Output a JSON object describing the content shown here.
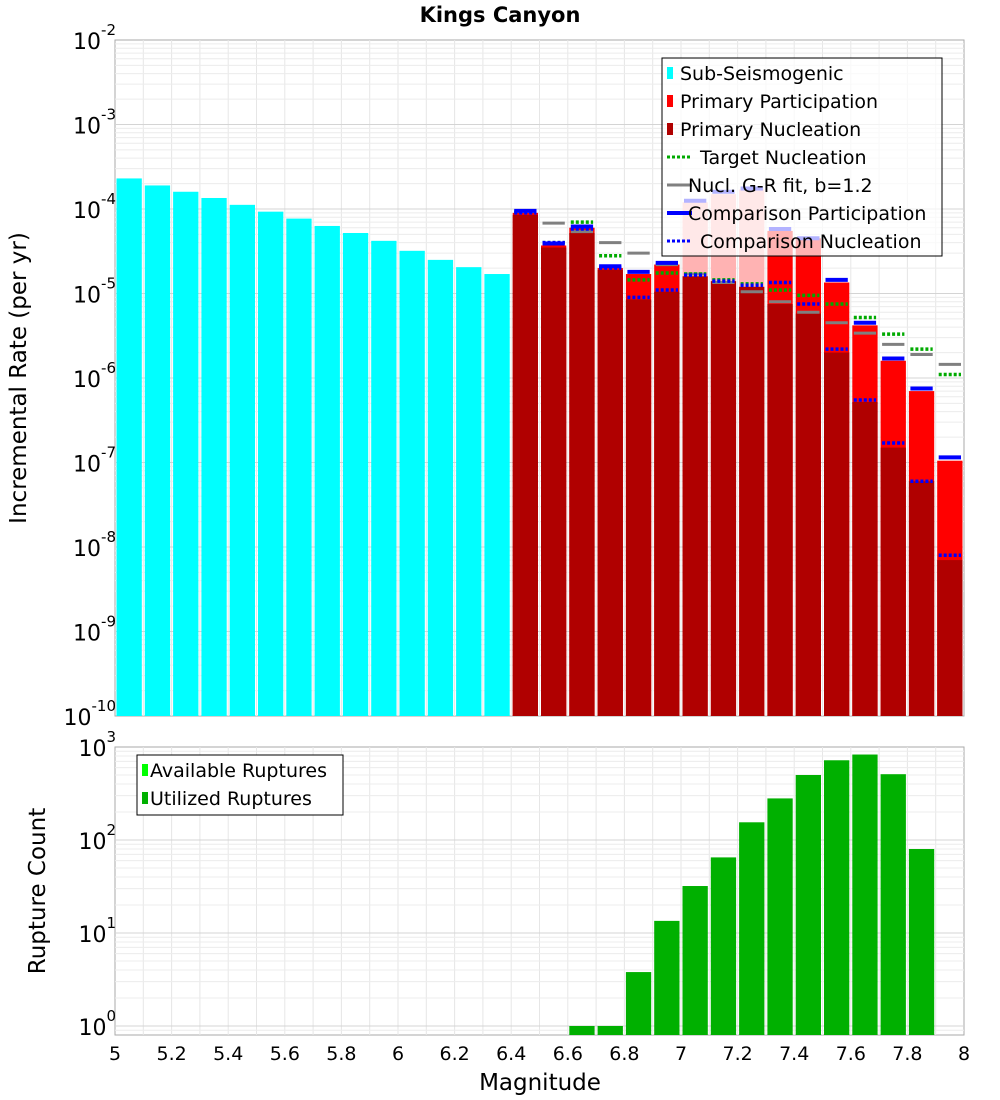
{
  "chart_data": [
    {
      "type": "bar",
      "title": "Kings Canyon",
      "xlabel": "",
      "ylabel": "Incremental Rate (per yr)",
      "yscale": "log",
      "xlim": [
        5,
        8
      ],
      "ylim": [
        1e-10,
        0.01
      ],
      "bin_width": 0.1,
      "y_ticks": [
        {
          "base": "10",
          "exp": "-10"
        },
        {
          "base": "10",
          "exp": "-9"
        },
        {
          "base": "10",
          "exp": "-8"
        },
        {
          "base": "10",
          "exp": "-7"
        },
        {
          "base": "10",
          "exp": "-6"
        },
        {
          "base": "10",
          "exp": "-5"
        },
        {
          "base": "10",
          "exp": "-4"
        },
        {
          "base": "10",
          "exp": "-3"
        },
        {
          "base": "10",
          "exp": "-2"
        }
      ],
      "legend": [
        {
          "label": "Sub-Seismogenic",
          "color": "#00ffff",
          "style": "box"
        },
        {
          "label": "Primary Participation",
          "color": "#ff0000",
          "style": "box"
        },
        {
          "label": "Primary Nucleation",
          "color": "#b00000",
          "style": "box"
        },
        {
          "label": "Target Nucleation",
          "color": "#00aa00",
          "style": "dotted"
        },
        {
          "label": "Nucl. G-R fit, b=1.2",
          "color": "#808080",
          "style": "line"
        },
        {
          "label": "Comparison Participation",
          "color": "#0000ff",
          "style": "thick"
        },
        {
          "label": "Comparison Nucleation",
          "color": "#0000ff",
          "style": "dotted"
        }
      ],
      "series": [
        {
          "name": "Sub-Seismogenic",
          "color": "#00ffff",
          "x": [
            5.05,
            5.15,
            5.25,
            5.35,
            5.45,
            5.55,
            5.65,
            5.75,
            5.85,
            5.95,
            6.05,
            6.15,
            6.25,
            6.35
          ],
          "values": [
            0.00023,
            0.00019,
            0.00016,
            0.000135,
            0.000112,
            9.3e-05,
            7.7e-05,
            6.3e-05,
            5.2e-05,
            4.2e-05,
            3.2e-05,
            2.5e-05,
            2.05e-05,
            1.7e-05
          ]
        },
        {
          "name": "Primary Participation",
          "color": "#ff0000",
          "x": [
            6.45,
            6.55,
            6.65,
            6.75,
            6.85,
            6.95,
            7.05,
            7.15,
            7.25,
            7.35,
            7.45,
            7.55,
            7.65,
            7.75,
            7.85,
            7.95
          ],
          "values": [
            9e-05,
            3.7e-05,
            6e-05,
            2e-05,
            1.7e-05,
            2.2e-05,
            0.00012,
            0.00015,
            0.00017,
            5.5e-05,
            4.5e-05,
            1.35e-05,
            4.2e-06,
            1.6e-06,
            7e-07,
            1.05e-07
          ]
        },
        {
          "name": "Primary Nucleation",
          "color": "#b00000",
          "x": [
            6.45,
            6.55,
            6.65,
            6.75,
            6.85,
            6.95,
            7.05,
            7.15,
            7.25,
            7.35,
            7.45,
            7.55,
            7.65,
            7.75,
            7.85,
            7.95
          ],
          "values": [
            8.5e-05,
            3.5e-05,
            5.2e-05,
            1.9e-05,
            8.5e-06,
            1.05e-05,
            1.6e-05,
            1.4e-05,
            1.2e-05,
            7.5e-06,
            5.8e-06,
            2e-06,
            5.2e-07,
            1.5e-07,
            6e-08,
            7e-09
          ]
        },
        {
          "name": "Target Nucleation",
          "color": "#00aa00",
          "x": [
            6.45,
            6.55,
            6.65,
            6.75,
            6.85,
            6.95,
            7.05,
            7.15,
            7.25,
            7.35,
            7.45,
            7.55,
            7.65,
            7.75,
            7.85,
            7.95
          ],
          "values": [
            9.2e-05,
            4e-05,
            7e-05,
            2.8e-05,
            1.45e-05,
            1.75e-05,
            1.7e-05,
            1.45e-05,
            1.3e-05,
            1.1e-05,
            9.5e-06,
            7.5e-06,
            5.2e-06,
            3.3e-06,
            2.2e-06,
            1.1e-06
          ]
        },
        {
          "name": "Nucl. G-R fit, b=1.2",
          "color": "#808080",
          "x": [
            6.55,
            6.65,
            6.75,
            6.85,
            6.95,
            7.05,
            7.15,
            7.25,
            7.35,
            7.45,
            7.55,
            7.65,
            7.75,
            7.85,
            7.95
          ],
          "values": [
            6.8e-05,
            5.4e-05,
            4e-05,
            3e-05,
            2.2e-05,
            1.7e-05,
            1.35e-05,
            1.05e-05,
            8e-06,
            6e-06,
            4.5e-06,
            3.4e-06,
            2.5e-06,
            1.9e-06,
            1.45e-06
          ]
        },
        {
          "name": "Comparison Participation",
          "color": "#0000ff",
          "x": [
            6.45,
            6.55,
            6.65,
            6.75,
            6.85,
            6.95,
            7.05,
            7.15,
            7.25,
            7.35,
            7.45,
            7.55,
            7.65,
            7.75,
            7.85,
            7.95
          ],
          "values": [
            9.5e-05,
            3.9e-05,
            6.2e-05,
            2.1e-05,
            1.8e-05,
            2.3e-05,
            0.000125,
            0.00016,
            0.000175,
            5.8e-05,
            4.5e-05,
            1.45e-05,
            4.5e-06,
            1.7e-06,
            7.5e-07,
            1.15e-07
          ]
        },
        {
          "name": "Comparison Nucleation",
          "color": "#0000ff",
          "x": [
            6.45,
            6.55,
            6.65,
            6.75,
            6.85,
            6.95,
            7.05,
            7.15,
            7.25,
            7.35,
            7.45,
            7.55,
            7.65,
            7.75,
            7.85,
            7.95
          ],
          "values": [
            9e-05,
            4e-05,
            5.8e-05,
            2e-05,
            9e-06,
            1.1e-05,
            1.65e-05,
            1.4e-05,
            1.25e-05,
            1.35e-05,
            7.5e-06,
            2.2e-06,
            5.5e-07,
            1.7e-07,
            6e-08,
            8e-09
          ]
        }
      ]
    },
    {
      "type": "bar",
      "title": "",
      "xlabel": "Magnitude",
      "ylabel": "Rupture Count",
      "yscale": "log",
      "xlim": [
        5,
        8
      ],
      "ylim": [
        0.8,
        1000
      ],
      "x_ticks": [
        "5",
        "5.2",
        "5.4",
        "5.6",
        "5.8",
        "6",
        "6.2",
        "6.4",
        "6.6",
        "6.8",
        "7",
        "7.2",
        "7.4",
        "7.6",
        "7.8",
        "8"
      ],
      "y_ticks": [
        {
          "base": "10",
          "exp": "0"
        },
        {
          "base": "10",
          "exp": "1"
        },
        {
          "base": "10",
          "exp": "2"
        },
        {
          "base": "10",
          "exp": "3"
        }
      ],
      "legend": [
        {
          "label": "Available Ruptures",
          "color": "#00ff00",
          "style": "box"
        },
        {
          "label": "Utilized Ruptures",
          "color": "#00b000",
          "style": "box"
        }
      ],
      "series": [
        {
          "name": "Utilized Ruptures",
          "color": "#00b000",
          "x": [
            6.65,
            6.75,
            6.85,
            6.95,
            7.05,
            7.15,
            7.25,
            7.35,
            7.45,
            7.55,
            7.65,
            7.75,
            7.85
          ],
          "values": [
            1,
            1,
            3.8,
            13.5,
            32,
            65,
            155,
            280,
            500,
            720,
            830,
            510,
            80
          ]
        }
      ]
    }
  ]
}
